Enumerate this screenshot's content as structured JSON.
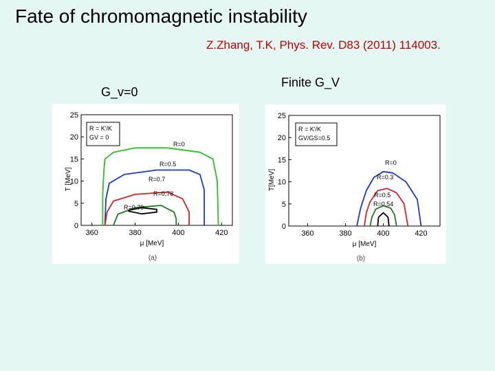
{
  "slide": {
    "title": "Fate of chromomagnetic instability",
    "reference": "Z.Zhang, T.K, Phys. Rev. D83 (2011) 114003.",
    "left_label": "G_v=0",
    "right_label": "Finite G_V"
  },
  "colors": {
    "background": "#e4f7f2",
    "reference_text": "#c00000",
    "green": "#22c422",
    "blue": "#1f35d8",
    "red": "#e02020",
    "dark_green": "#1a7a1a",
    "black": "#000000"
  },
  "chart_data": [
    {
      "type": "line",
      "panel_label": "(a)",
      "xlabel": "μ [MeV]",
      "ylabel": "T [MeV]",
      "xticks": [
        360,
        380,
        400,
        420
      ],
      "yticks": [
        0,
        5,
        10,
        15,
        20,
        25
      ],
      "xlim": [
        355,
        425
      ],
      "ylim": [
        0,
        25
      ],
      "legend": [
        "R = K'/K",
        "GV = 0"
      ],
      "series": [
        {
          "name": "R=0",
          "color": "#22c422",
          "points": [
            [
              365,
              0
            ],
            [
              365,
              7
            ],
            [
              365.5,
              12
            ],
            [
              366,
              15
            ],
            [
              370,
              16.5
            ],
            [
              380,
              17.5
            ],
            [
              395,
              17.5
            ],
            [
              410,
              16.5
            ],
            [
              416,
              15
            ],
            [
              418,
              10
            ],
            [
              418.5,
              0
            ]
          ]
        },
        {
          "name": "R=0.5",
          "color": "#1f35d8",
          "points": [
            [
              366,
              0
            ],
            [
              366.5,
              6
            ],
            [
              368,
              9.5
            ],
            [
              375,
              11.5
            ],
            [
              390,
              12.5
            ],
            [
              405,
              12.5
            ],
            [
              410,
              11.5
            ],
            [
              412,
              8
            ],
            [
              412,
              0
            ]
          ]
        },
        {
          "name": "R=0.7",
          "color": "#e02020",
          "points": [
            [
              366,
              0
            ],
            [
              367,
              3
            ],
            [
              370,
              5.5
            ],
            [
              380,
              7
            ],
            [
              395,
              7.5
            ],
            [
              402,
              6
            ],
            [
              405,
              3
            ],
            [
              405,
              0
            ]
          ]
        },
        {
          "name": "R=0.78",
          "color": "#1a7a1a",
          "points": [
            [
              370,
              0
            ],
            [
              372,
              2.5
            ],
            [
              380,
              4
            ],
            [
              392,
              4.5
            ],
            [
              398,
              3
            ],
            [
              399,
              1.5
            ],
            [
              399,
              0
            ]
          ]
        },
        {
          "name": "R=0.79",
          "color": "#000000",
          "points": [
            [
              377,
              3.4
            ],
            [
              383,
              4
            ],
            [
              390,
              3.6
            ],
            [
              390,
              3
            ],
            [
              383,
              2.6
            ],
            [
              377,
              3.2
            ],
            [
              377,
              3.4
            ]
          ]
        }
      ],
      "annotations": [
        "R=0",
        "R=0.5",
        "R=0.7",
        "R=0.78",
        "R=0.79"
      ]
    },
    {
      "type": "line",
      "panel_label": "(b)",
      "xlabel": "μ [MeV]",
      "ylabel": "T[MeV]",
      "xticks": [
        360,
        380,
        400,
        420
      ],
      "yticks": [
        0,
        5,
        10,
        15,
        20,
        25
      ],
      "xlim": [
        350,
        430
      ],
      "ylim": [
        0,
        25
      ],
      "legend": [
        "R = K'/K",
        "GV/GS=0.5"
      ],
      "series": [
        {
          "name": "R=0",
          "color": "#1f35d8",
          "points": [
            [
              386,
              0
            ],
            [
              388,
              4
            ],
            [
              391,
              8
            ],
            [
              395,
              11
            ],
            [
              400,
              12.3
            ],
            [
              405,
              12
            ],
            [
              412,
              10
            ],
            [
              418,
              6
            ],
            [
              420,
              0
            ]
          ]
        },
        {
          "name": "R=0.3",
          "color": "#e02020",
          "points": [
            [
              390,
              0
            ],
            [
              391,
              3
            ],
            [
              393,
              5.5
            ],
            [
              397,
              8
            ],
            [
              402,
              8.5
            ],
            [
              407,
              7.5
            ],
            [
              411,
              5
            ],
            [
              413,
              0
            ]
          ]
        },
        {
          "name": "R=0.5",
          "color": "#1a7a1a",
          "points": [
            [
              393,
              0
            ],
            [
              394,
              2
            ],
            [
              396,
              3.8
            ],
            [
              400,
              4.6
            ],
            [
              404,
              4
            ],
            [
              406,
              2.5
            ],
            [
              407,
              0
            ]
          ]
        },
        {
          "name": "R=0.54",
          "color": "#000000",
          "points": [
            [
              397,
              0
            ],
            [
              397.5,
              2
            ],
            [
              400,
              3
            ],
            [
              402.5,
              2
            ],
            [
              403,
              0
            ]
          ]
        }
      ],
      "annotations": [
        "R=0",
        "R=0.3",
        "R=0.5",
        "R=0.54"
      ]
    }
  ]
}
